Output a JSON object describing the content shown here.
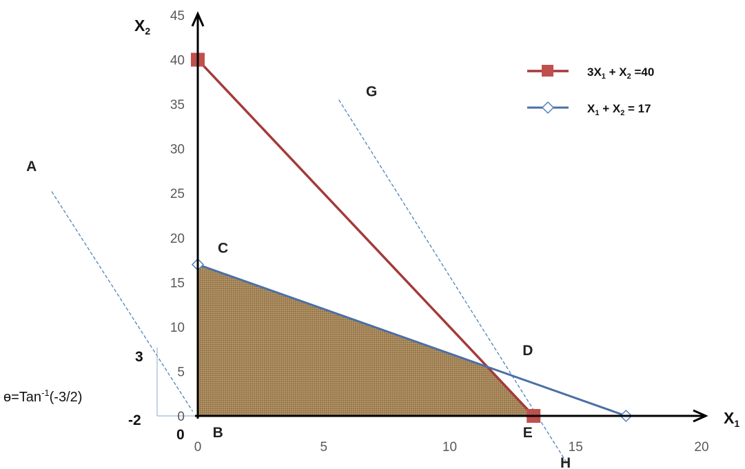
{
  "chart_data": {
    "type": "line",
    "xlabel": "X",
    "xlabel_sub": "1",
    "ylabel": "X",
    "ylabel_sub": "2",
    "xlim": [
      0,
      20
    ],
    "ylim": [
      0,
      45
    ],
    "x_ticks": [
      0,
      5,
      10,
      15,
      20
    ],
    "y_ticks": [
      0,
      5,
      10,
      15,
      20,
      25,
      30,
      35,
      40,
      45
    ],
    "grid": false,
    "legend_position": "top-right",
    "series": [
      {
        "name_parts": [
          "3X",
          "1",
          " + X",
          "2",
          " =40"
        ],
        "color": "#a33a3a",
        "marker": "square",
        "marker_color": "#c0504d",
        "points": [
          [
            0,
            40
          ],
          [
            13.33,
            0
          ]
        ]
      },
      {
        "name_parts": [
          "X",
          "1",
          " + X",
          "2",
          " = 17"
        ],
        "color": "#4a6fa5",
        "marker": "diamond",
        "marker_color": "#4f81bd",
        "points": [
          [
            0,
            17
          ],
          [
            17,
            0
          ]
        ]
      }
    ],
    "feasible_region": {
      "vertices": [
        [
          0,
          0
        ],
        [
          0,
          17
        ],
        [
          11.5,
          5.5
        ],
        [
          13.33,
          0
        ]
      ],
      "color": "#a0824f"
    },
    "objective_lines": [
      {
        "label_start": "A",
        "label_end": "",
        "points": [
          [
            -5.8,
            25.2
          ],
          [
            -0.2,
            0.5
          ]
        ]
      },
      {
        "label_start": "G",
        "label_end": "H",
        "points": [
          [
            5.6,
            35.5
          ],
          [
            14.7,
            -5.5
          ]
        ]
      }
    ],
    "point_labels": [
      {
        "text": "B",
        "x": 0.8,
        "y": -2.4
      },
      {
        "text": "C",
        "x": 1.0,
        "y": 18.3
      },
      {
        "text": "D",
        "x": 13.1,
        "y": 6.8
      },
      {
        "text": "E",
        "x": 13.1,
        "y": -2.4
      },
      {
        "text": "G",
        "x": 6.9,
        "y": 35.9
      },
      {
        "text": "H",
        "x": 14.6,
        "y": -5.8
      },
      {
        "text": "A",
        "x": -6.6,
        "y": 27.5
      }
    ],
    "angle_annotation": {
      "prefix": "ɵ=Tan",
      "superscript": "-1",
      "suffix": "(-3/2)",
      "rise_label": "3",
      "run_label": "-2",
      "origin_label": "0"
    }
  }
}
